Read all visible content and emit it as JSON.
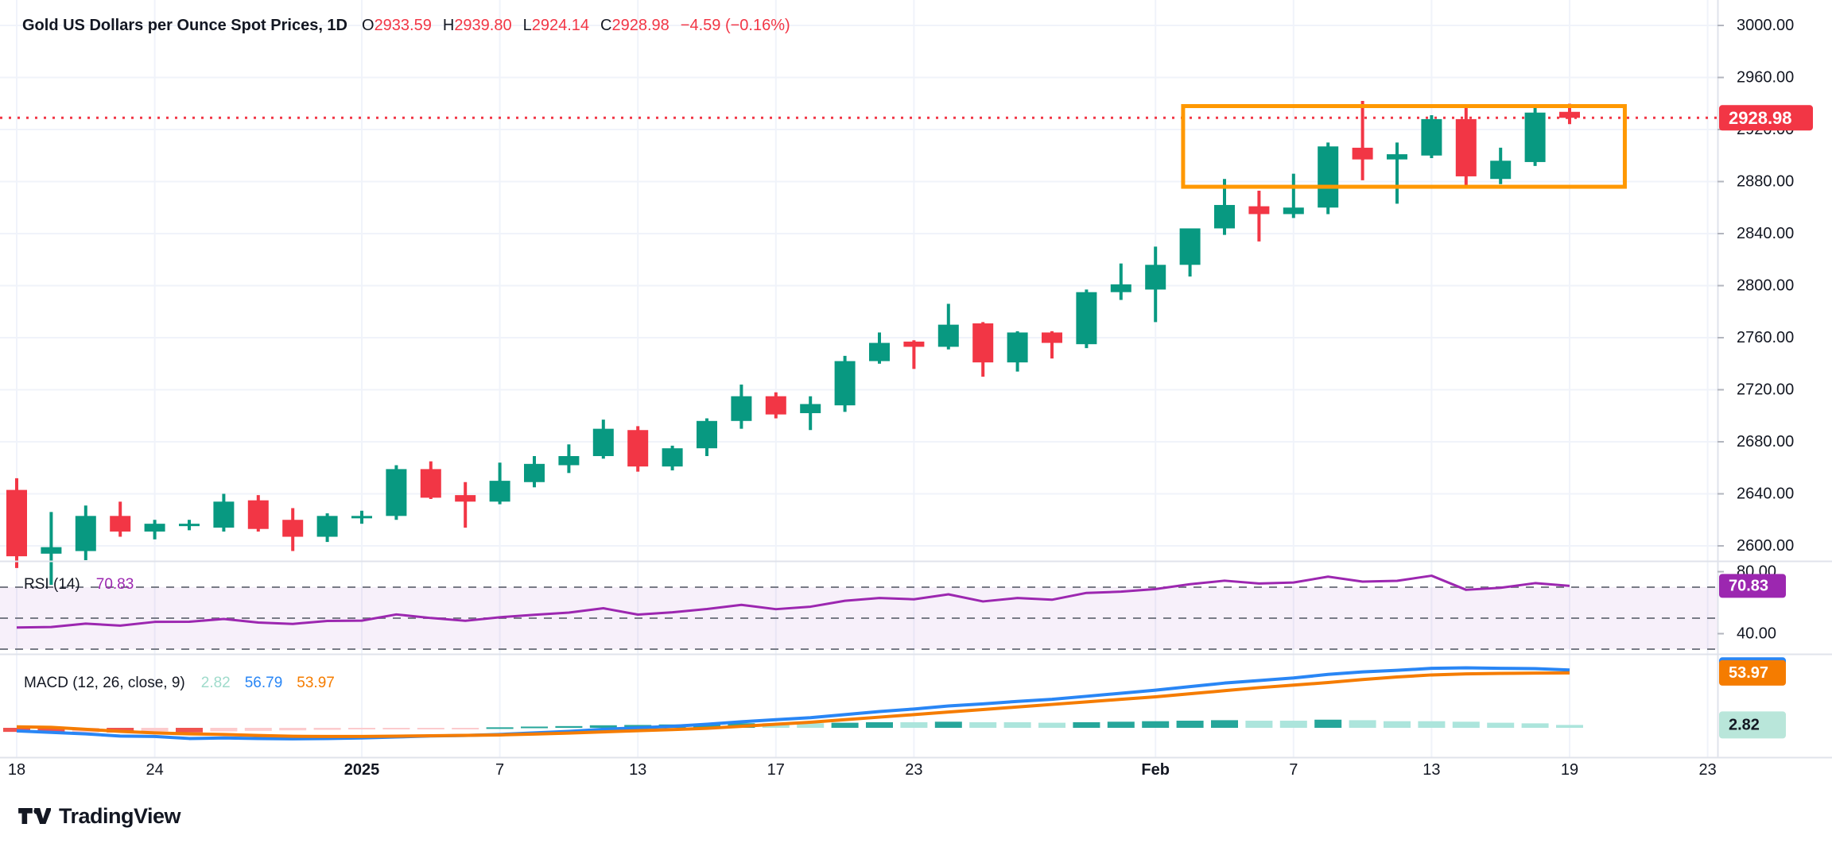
{
  "header": {
    "title": "Gold US Dollars per Ounce Spot Prices, 1D",
    "ohlc": [
      {
        "label": "O",
        "value": "2933.59"
      },
      {
        "label": "H",
        "value": "2939.80"
      },
      {
        "label": "L",
        "value": "2924.14"
      },
      {
        "label": "C",
        "value": "2928.98"
      }
    ],
    "change": "−4.59 (−0.16%)"
  },
  "rsi_legend": {
    "name": "RSI (14)",
    "value": "70.83"
  },
  "macd_legend": {
    "name": "MACD (12, 26, close, 9)",
    "hist": "2.82",
    "macd": "56.79",
    "signal": "53.97"
  },
  "badges": {
    "price": "2928.98",
    "rsi": "70.83",
    "signal": "53.97",
    "hist": "2.82"
  },
  "watermark": "TradingView",
  "colors": {
    "up": "#089981",
    "down": "#f23645",
    "rsi_line": "#9c27b0",
    "rsi_badge": "#9c27b0",
    "rsi_band": "rgba(149,66,189,0.08)",
    "macd_line": "#2986f5",
    "signal_line": "#f57c00",
    "hist_up": "#26a69a",
    "hist_up_light": "#ace5dc",
    "hist_down": "#ef5350",
    "hist_down_light": "#fccbcd",
    "hist_badge_bg": "#b9e6da",
    "box": "#ff9800",
    "last_price": "#f23645",
    "text": "#131722",
    "grid": "#f0f3fa",
    "separator": "#e0e3eb",
    "dash": "#787b86",
    "tick": "#b2b5be"
  },
  "chart_data": [
    {
      "type": "candlestick",
      "title": "Gold US Dollars per Ounce Spot Prices, 1D",
      "ylim": [
        2570,
        3000
      ],
      "y_ticks": [
        {
          "label": "3000.00",
          "value": 3000
        },
        {
          "label": "2960.00",
          "value": 2960
        },
        {
          "label": "2920.00",
          "value": 2920
        },
        {
          "label": "2880.00",
          "value": 2880
        },
        {
          "label": "2840.00",
          "value": 2840
        },
        {
          "label": "2800.00",
          "value": 2800
        },
        {
          "label": "2760.00",
          "value": 2760
        },
        {
          "label": "2720.00",
          "value": 2720
        },
        {
          "label": "2680.00",
          "value": 2680
        },
        {
          "label": "2640.00",
          "value": 2640
        },
        {
          "label": "2600.00",
          "value": 2600
        }
      ],
      "x_labels": [
        {
          "label": "18",
          "index": 0,
          "bold": false
        },
        {
          "label": "24",
          "index": 4,
          "bold": false
        },
        {
          "label": "2025",
          "index": 10,
          "bold": true
        },
        {
          "label": "7",
          "index": 14,
          "bold": false
        },
        {
          "label": "13",
          "index": 18,
          "bold": false
        },
        {
          "label": "17",
          "index": 22,
          "bold": false
        },
        {
          "label": "23",
          "index": 26,
          "bold": false
        },
        {
          "label": "Feb",
          "index": 33,
          "bold": true
        },
        {
          "label": "7",
          "index": 37,
          "bold": false
        },
        {
          "label": "13",
          "index": 41,
          "bold": false
        },
        {
          "label": "19",
          "index": 45,
          "bold": false
        },
        {
          "label": "23",
          "index": 49,
          "bold": false
        }
      ],
      "candles_ohlc": [
        [
          2643,
          2652,
          2583,
          2592
        ],
        [
          2594,
          2626,
          2570,
          2599
        ],
        [
          2596,
          2631,
          2589,
          2623
        ],
        [
          2623,
          2634,
          2607,
          2611
        ],
        [
          2611,
          2620,
          2605,
          2617
        ],
        [
          2616,
          2620,
          2612,
          2617
        ],
        [
          2614,
          2640,
          2611,
          2634
        ],
        [
          2635,
          2639,
          2611,
          2613
        ],
        [
          2620,
          2629,
          2596,
          2607
        ],
        [
          2607,
          2625,
          2603,
          2623
        ],
        [
          2622,
          2627,
          2617,
          2623
        ],
        [
          2623,
          2662,
          2620,
          2659
        ],
        [
          2659,
          2665,
          2636,
          2637
        ],
        [
          2639,
          2649,
          2614,
          2634
        ],
        [
          2634,
          2664,
          2632,
          2650
        ],
        [
          2649,
          2669,
          2645,
          2663
        ],
        [
          2662,
          2678,
          2656,
          2669
        ],
        [
          2669,
          2697,
          2667,
          2690
        ],
        [
          2689,
          2692,
          2657,
          2661
        ],
        [
          2661,
          2677,
          2658,
          2675
        ],
        [
          2675,
          2698,
          2669,
          2696
        ],
        [
          2696,
          2724,
          2690,
          2715
        ],
        [
          2715,
          2718,
          2698,
          2701
        ],
        [
          2702,
          2715,
          2689,
          2709
        ],
        [
          2708,
          2746,
          2703,
          2742
        ],
        [
          2742,
          2764,
          2740,
          2756
        ],
        [
          2757,
          2758,
          2736,
          2753
        ],
        [
          2753,
          2786,
          2751,
          2770
        ],
        [
          2771,
          2772,
          2730,
          2741
        ],
        [
          2741,
          2765,
          2734,
          2764
        ],
        [
          2764,
          2765,
          2744,
          2756
        ],
        [
          2755,
          2797,
          2752,
          2795
        ],
        [
          2795,
          2817,
          2789,
          2801
        ],
        [
          2797,
          2830,
          2772,
          2816
        ],
        [
          2816,
          2844,
          2807,
          2844
        ],
        [
          2844,
          2882,
          2839,
          2862
        ],
        [
          2861,
          2873,
          2834,
          2855
        ],
        [
          2855,
          2886,
          2852,
          2860
        ],
        [
          2860,
          2910,
          2855,
          2907
        ],
        [
          2906,
          2942,
          2881,
          2897
        ],
        [
          2897,
          2910,
          2863,
          2901
        ],
        [
          2900,
          2931,
          2898,
          2928
        ],
        [
          2928,
          2939,
          2877,
          2884
        ],
        [
          2882,
          2906,
          2878,
          2896
        ],
        [
          2895,
          2937,
          2892,
          2933
        ],
        [
          2933.59,
          2939.8,
          2924.14,
          2928.98
        ]
      ],
      "annotations": {
        "last_price": 2928.98,
        "box": {
          "x_start_index": 33.8,
          "x_end_index": 46.6,
          "price_top": 2938,
          "price_bottom": 2876
        }
      }
    },
    {
      "type": "line",
      "title": "RSI (14)",
      "ylim": [
        25,
        85
      ],
      "levels": [
        70,
        50,
        30
      ],
      "y_ticks": [
        {
          "label": "80.00",
          "value": 80
        },
        {
          "label": "40.00",
          "value": 40
        }
      ],
      "values": [
        44,
        44.3,
        46.5,
        45.2,
        47.6,
        47.7,
        49.5,
        47.2,
        46.3,
        48.2,
        48.4,
        52.4,
        50.1,
        48.3,
        50.6,
        52.2,
        53.6,
        56.4,
        52.3,
        53.8,
        55.9,
        58.6,
        55.8,
        57.4,
        61.2,
        63,
        62.2,
        65.4,
        60.8,
        63,
        61.9,
        66.3,
        67.1,
        68.8,
        71.9,
        74.2,
        72.4,
        73,
        76.8,
        73.6,
        74.1,
        77.4,
        68.3,
        69.6,
        72.6,
        70.83
      ]
    },
    {
      "type": "line",
      "title": "MACD (12, 26, close, 9)",
      "series": [
        {
          "name": "macd",
          "values": [
            -3,
            -4.5,
            -6,
            -8.1,
            -8.5,
            -10.5,
            -10,
            -10.5,
            -10.8,
            -10.5,
            -10,
            -9,
            -8,
            -7.5,
            -6.5,
            -5,
            -3.5,
            -1.5,
            0,
            1.5,
            3.5,
            6,
            8,
            10,
            13,
            16,
            18.5,
            21.5,
            23.5,
            26,
            28,
            31,
            34,
            37,
            40.5,
            44,
            46.5,
            49,
            52.5,
            55,
            56.5,
            58.5,
            59,
            58.5,
            58.2,
            56.79
          ]
        },
        {
          "name": "signal",
          "values": [
            1,
            0.5,
            -1.5,
            -3.5,
            -5,
            -6,
            -6.5,
            -7.5,
            -8.3,
            -8.5,
            -8.5,
            -8.2,
            -7.8,
            -7.4,
            -7,
            -6.2,
            -5.2,
            -4,
            -2.8,
            -1.8,
            -0.5,
            1.5,
            3.5,
            5.5,
            8,
            10.5,
            13,
            15.5,
            18,
            20.5,
            23,
            25.5,
            28,
            30.5,
            33.5,
            36.5,
            39.5,
            42,
            44.5,
            47.5,
            50,
            52,
            53,
            53.5,
            53.8,
            53.97
          ]
        }
      ]
    }
  ]
}
